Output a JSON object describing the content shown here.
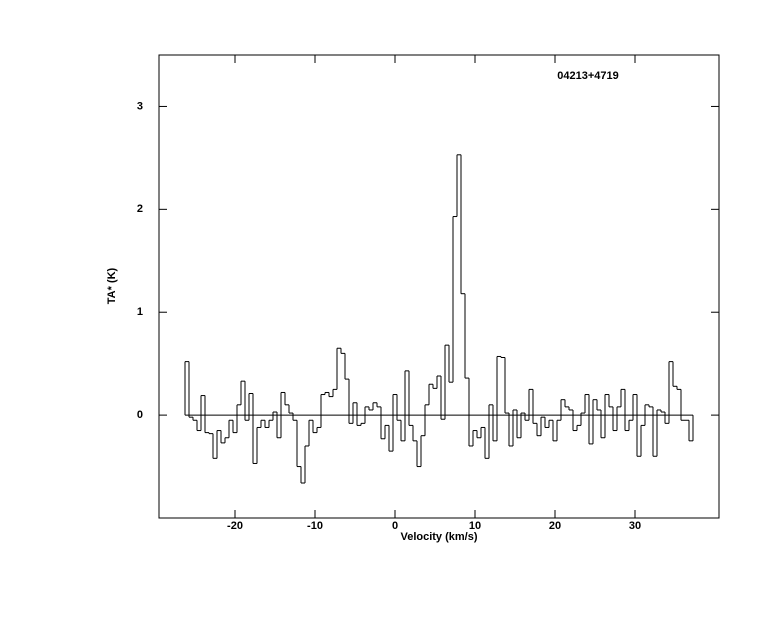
{
  "chart_data": {
    "type": "step",
    "title": "04213+4719",
    "xlabel": "Velocity (km/s)",
    "ylabel": "TA* (K)",
    "x": [
      -26,
      -25.5,
      -25,
      -24.5,
      -24,
      -23.5,
      -23,
      -22.5,
      -22,
      -21.5,
      -21,
      -20.5,
      -20,
      -19.5,
      -19,
      -18.5,
      -18,
      -17.5,
      -17,
      -16.5,
      -16,
      -15.5,
      -15,
      -14.5,
      -14,
      -13.5,
      -13,
      -12.5,
      -12,
      -11.5,
      -11,
      -10.5,
      -10,
      -9.5,
      -9,
      -8.5,
      -8,
      -7.5,
      -7,
      -6.5,
      -6,
      -5.5,
      -5,
      -4.5,
      -4,
      -3.5,
      -3,
      -2.5,
      -2,
      -1.5,
      -1,
      -0.5,
      0,
      0.5,
      1,
      1.5,
      2,
      2.5,
      3,
      3.5,
      4,
      4.5,
      5,
      5.5,
      6,
      6.5,
      7,
      7.5,
      8,
      8.5,
      9,
      9.5,
      10,
      10.5,
      11,
      11.5,
      12,
      12.5,
      13,
      13.5,
      14,
      14.5,
      15,
      15.5,
      16,
      16.5,
      17,
      17.5,
      18,
      18.5,
      19,
      19.5,
      20,
      20.5,
      21,
      21.5,
      22,
      22.5,
      23,
      23.5,
      24,
      24.5,
      25,
      25.5,
      26,
      26.5,
      27,
      27.5,
      28,
      28.5,
      29,
      29.5,
      30,
      30.5,
      31,
      31.5,
      32,
      32.5,
      33,
      33.5,
      34,
      34.5,
      35,
      35.5,
      36,
      36.5,
      37
    ],
    "values": [
      0.52,
      -0.02,
      -0.05,
      -0.15,
      0.19,
      -0.17,
      -0.18,
      -0.42,
      -0.15,
      -0.27,
      -0.22,
      -0.05,
      -0.17,
      0.1,
      0.33,
      -0.05,
      0.21,
      -0.47,
      -0.12,
      -0.05,
      -0.12,
      -0.05,
      0.03,
      -0.22,
      0.22,
      0.1,
      0.02,
      -0.05,
      -0.5,
      -0.66,
      -0.3,
      -0.05,
      -0.17,
      -0.12,
      0.2,
      0.22,
      0.18,
      0.25,
      0.65,
      0.6,
      0.35,
      -0.08,
      0.12,
      -0.1,
      -0.08,
      0.08,
      0.05,
      0.12,
      0.08,
      -0.23,
      -0.1,
      -0.35,
      0.2,
      -0.05,
      -0.25,
      0.43,
      -0.1,
      -0.25,
      -0.5,
      -0.2,
      0.1,
      0.3,
      0.26,
      0.38,
      -0.04,
      0.68,
      0.32,
      1.93,
      2.53,
      1.18,
      0.36,
      -0.3,
      -0.15,
      -0.22,
      -0.12,
      -0.42,
      0.1,
      -0.25,
      0.57,
      0.56,
      0.02,
      -0.3,
      0.05,
      -0.22,
      0.02,
      -0.05,
      0.25,
      -0.08,
      -0.2,
      -0.02,
      -0.12,
      -0.05,
      -0.25,
      -0.05,
      0.15,
      0.08,
      0.05,
      -0.15,
      -0.1,
      0.02,
      0.2,
      -0.28,
      0.15,
      0.05,
      -0.22,
      0.2,
      0.08,
      -0.15,
      0.08,
      0.25,
      -0.15,
      -0.05,
      0.2,
      -0.4,
      -0.1,
      0.1,
      0.08,
      -0.4,
      0.05,
      0.03,
      -0.08,
      0.52,
      0.28,
      0.25,
      -0.05,
      -0.05,
      -0.25
    ],
    "color": "#000000",
    "xlim": [
      -29.5,
      40.5
    ],
    "xticks": [
      -20,
      -10,
      0,
      10,
      20,
      30
    ],
    "ylim": [
      -1,
      3.5
    ],
    "yticks": [
      0,
      1,
      2,
      3
    ]
  }
}
